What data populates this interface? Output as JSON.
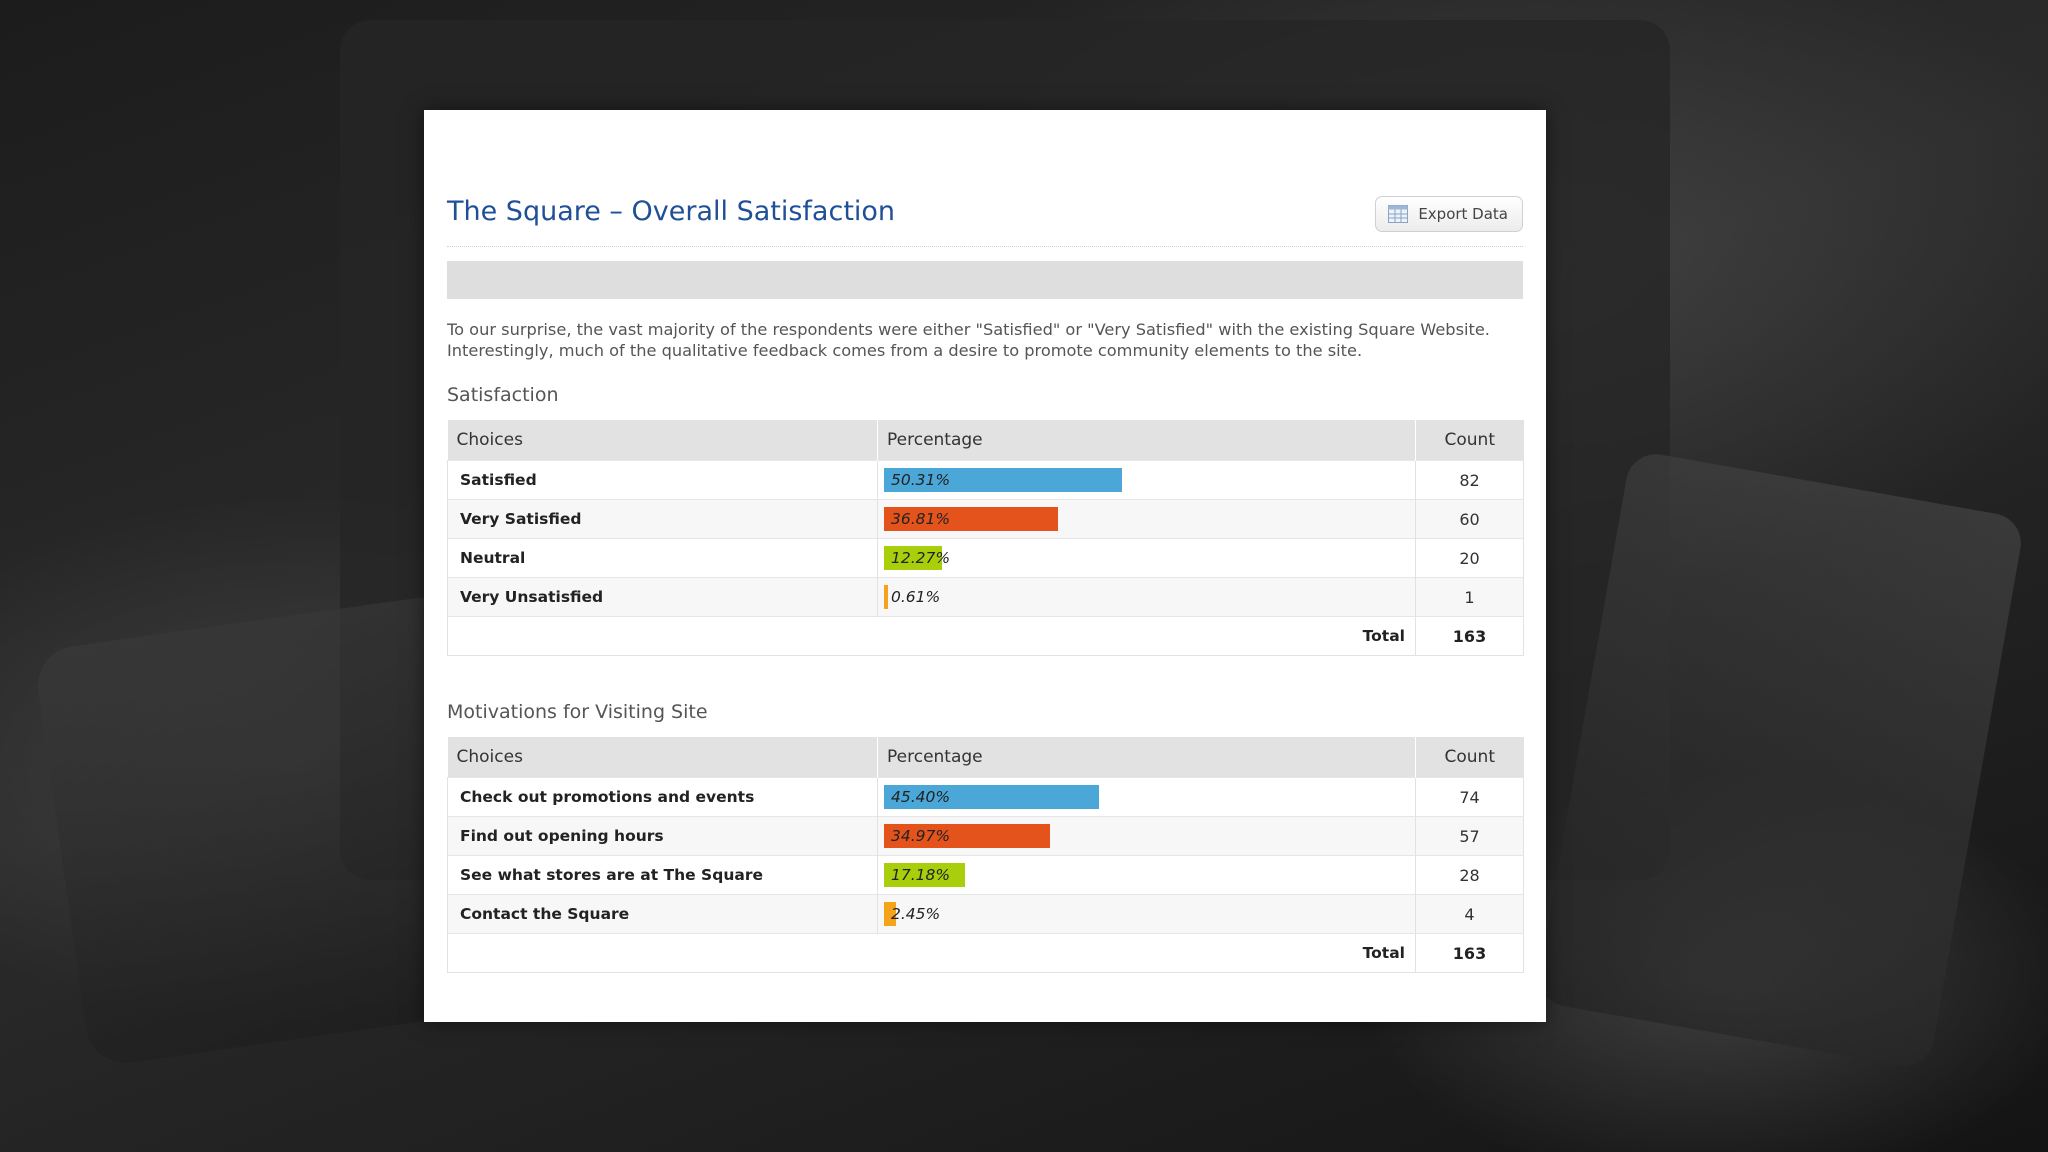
{
  "page": {
    "title": "The Square – Overall Satisfaction",
    "export_label": "Export Data",
    "intro_text": "To our surprise, the vast majority of the respondents were either \"Satisfied\" or \"Very Satisfied\" with the existing Square Website. Interestingly, much of the qualitative feedback comes from a desire to promote community elements to the site."
  },
  "colors": {
    "title": "#1f4f97",
    "bar_blue": "#4aa7d8",
    "bar_orange": "#e5531d",
    "bar_green": "#a9cf0c",
    "bar_yellow": "#f5a31a"
  },
  "columns": {
    "choices": "Choices",
    "percentage": "Percentage",
    "count": "Count",
    "total_label": "Total"
  },
  "satisfaction": {
    "title": "Satisfaction",
    "total": "163",
    "rows": [
      {
        "choice": "Satisfied",
        "percent_label": "50.31%",
        "percent": 50.31,
        "count": "82",
        "color": "#4aa7d8"
      },
      {
        "choice": "Very Satisfied",
        "percent_label": "36.81%",
        "percent": 36.81,
        "count": "60",
        "color": "#e5531d"
      },
      {
        "choice": "Neutral",
        "percent_label": "12.27%",
        "percent": 12.27,
        "count": "20",
        "color": "#a9cf0c"
      },
      {
        "choice": "Very Unsatisfied",
        "percent_label": "0.61%",
        "percent": 0.61,
        "count": "1",
        "color": "#f5a31a"
      }
    ]
  },
  "motivations": {
    "title": "Motivations for Visiting Site",
    "total": "163",
    "rows": [
      {
        "choice": "Check out promotions and events",
        "percent_label": "45.40%",
        "percent": 45.4,
        "count": "74",
        "color": "#4aa7d8"
      },
      {
        "choice": "Find out opening hours",
        "percent_label": "34.97%",
        "percent": 34.97,
        "count": "57",
        "color": "#e5531d"
      },
      {
        "choice": "See what stores are at The Square",
        "percent_label": "17.18%",
        "percent": 17.18,
        "count": "28",
        "color": "#a9cf0c"
      },
      {
        "choice": "Contact the Square",
        "percent_label": "2.45%",
        "percent": 2.45,
        "count": "4",
        "color": "#f5a31a"
      }
    ]
  }
}
